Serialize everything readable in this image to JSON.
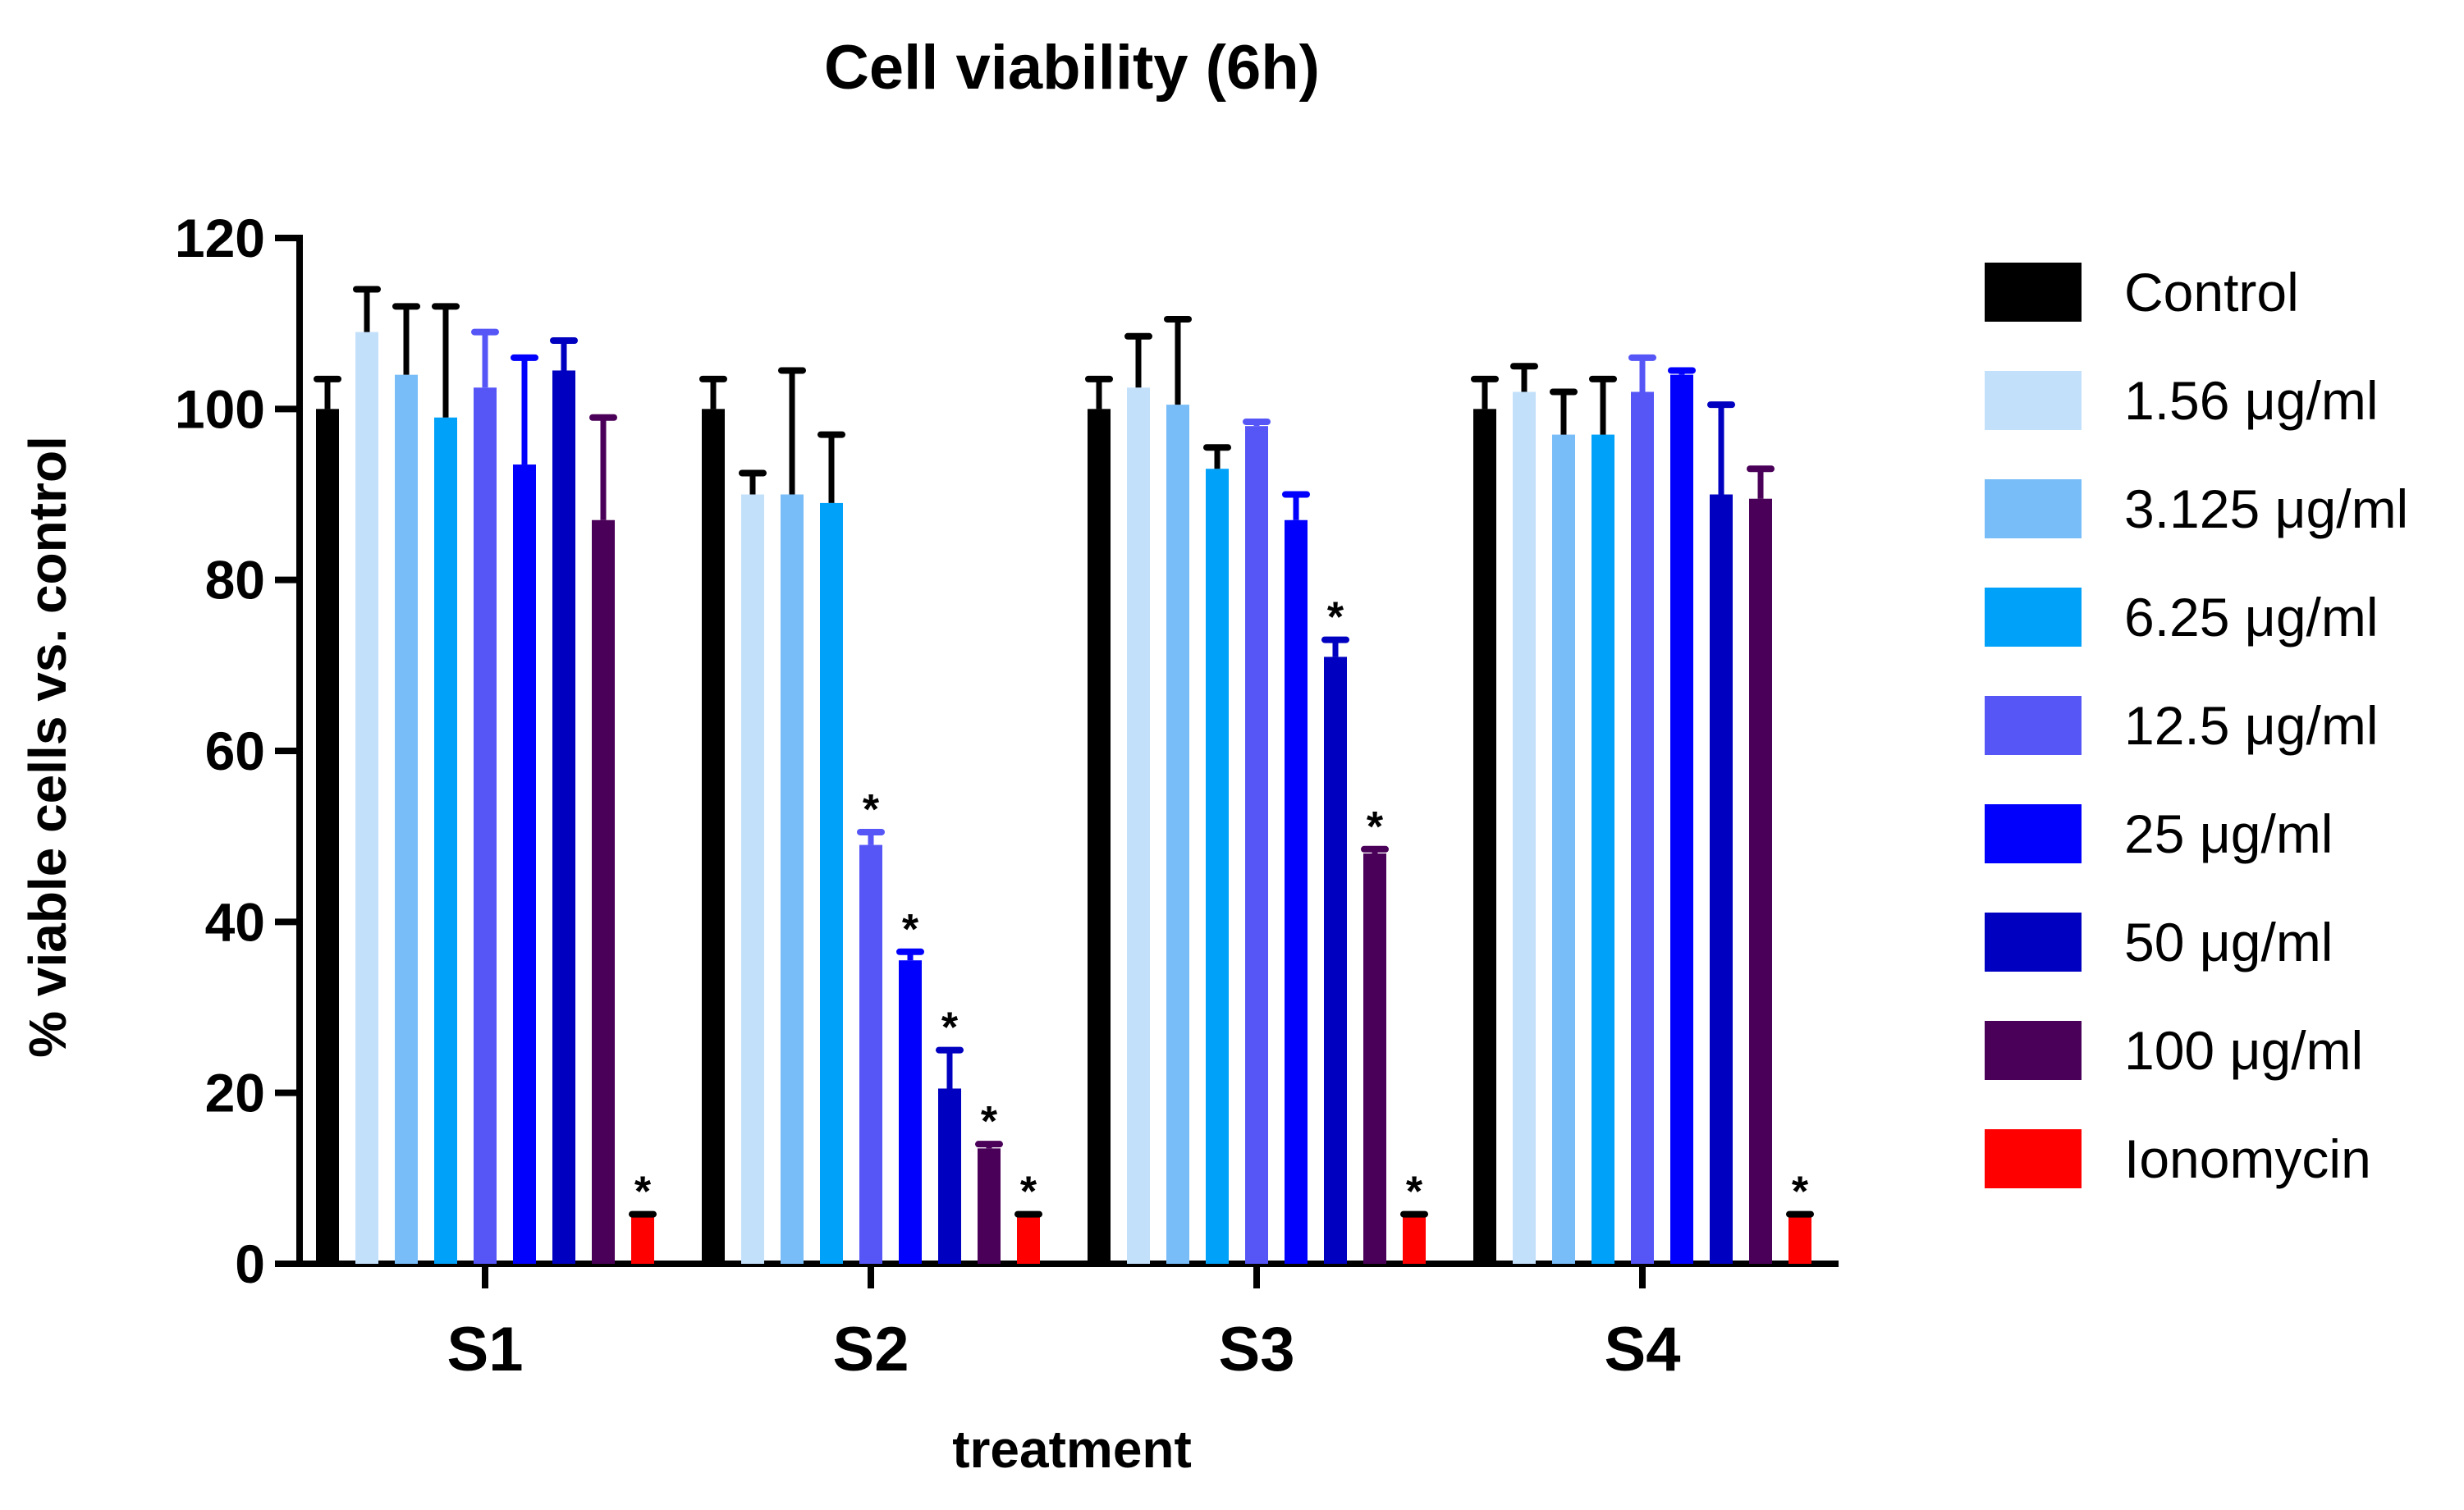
{
  "chart_data": {
    "type": "bar",
    "title": "Cell viability (6h)",
    "xlabel": "treatment",
    "ylabel": "% viable cells vs. control",
    "ylim": [
      0,
      120
    ],
    "yticks": [
      "0",
      "20",
      "40",
      "60",
      "80",
      "100",
      "120"
    ],
    "categories": [
      "S1",
      "S2",
      "S3",
      "S4"
    ],
    "legend_position": "right",
    "significance_marker": "*",
    "series": [
      {
        "name": "Control",
        "color": "#000000",
        "values": [
          100,
          100,
          100,
          100
        ],
        "errors": [
          3.5,
          3.5,
          3.5,
          3.5
        ],
        "significant": [
          false,
          false,
          false,
          false
        ]
      },
      {
        "name": "1.56 μg/ml",
        "color": "#c3e0fb",
        "values": [
          109,
          90,
          102.5,
          102
        ],
        "errors": [
          5,
          2.5,
          6,
          3
        ],
        "significant": [
          false,
          false,
          false,
          false
        ]
      },
      {
        "name": "3.125 μg/ml",
        "color": "#79bdf8",
        "values": [
          104,
          90,
          100.5,
          97
        ],
        "errors": [
          8,
          14.5,
          10,
          5
        ],
        "significant": [
          false,
          false,
          false,
          false
        ]
      },
      {
        "name": "6.25 μg/ml",
        "color": "#00a1f8",
        "values": [
          99,
          89,
          93,
          97
        ],
        "errors": [
          13,
          8,
          2.5,
          6.5
        ],
        "significant": [
          false,
          false,
          false,
          false
        ]
      },
      {
        "name": "12.5 μg/ml",
        "color": "#5656f7",
        "values": [
          102.5,
          49,
          98,
          102
        ],
        "errors": [
          6.5,
          1.5,
          0.5,
          4
        ],
        "significant": [
          false,
          true,
          false,
          false
        ]
      },
      {
        "name": "25 μg/ml",
        "color": "#0000fc",
        "values": [
          93.5,
          35.5,
          87,
          104
        ],
        "errors": [
          12.5,
          1,
          3,
          0.5
        ],
        "significant": [
          false,
          true,
          false,
          false
        ]
      },
      {
        "name": "50 μg/ml",
        "color": "#0000c0",
        "values": [
          104.5,
          20.5,
          71,
          90
        ],
        "errors": [
          3.5,
          4.5,
          2,
          10.5
        ],
        "significant": [
          false,
          true,
          true,
          false
        ]
      },
      {
        "name": "100 μg/ml",
        "color": "#4a0058",
        "values": [
          87,
          13.5,
          48,
          89.5
        ],
        "errors": [
          12,
          0.5,
          0.5,
          3.5
        ],
        "significant": [
          false,
          true,
          true,
          false
        ]
      },
      {
        "name": "Ionomycin",
        "color": "#ff0000",
        "values": [
          5.5,
          5.5,
          5.5,
          5.5
        ],
        "errors": [
          0.3,
          0.3,
          0.3,
          0.3
        ],
        "significant": [
          true,
          true,
          true,
          true
        ]
      }
    ]
  }
}
